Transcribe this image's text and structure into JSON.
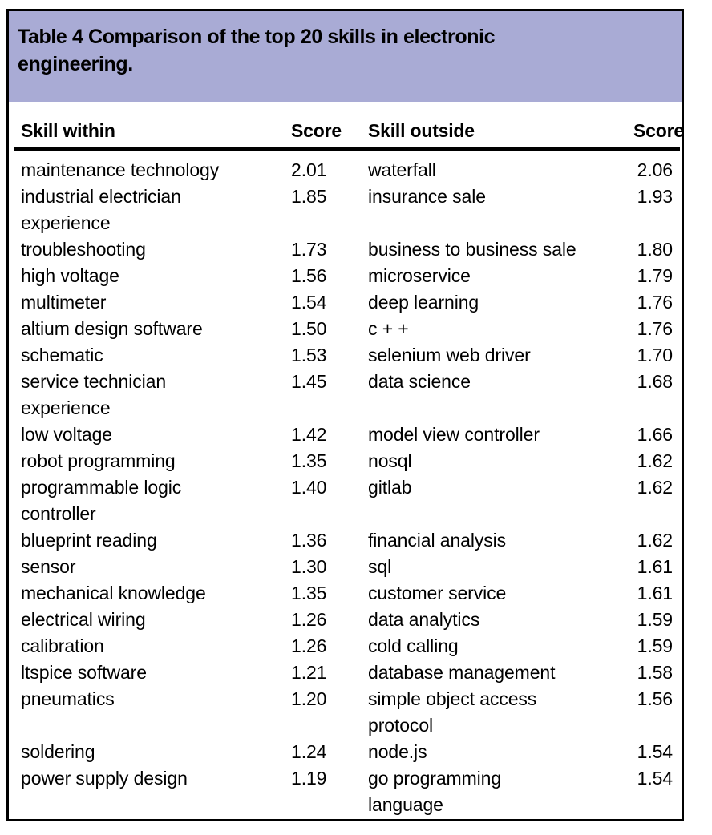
{
  "colors": {
    "caption_bg": "#a9abd5",
    "border": "#000000",
    "text": "#000000"
  },
  "table": {
    "caption": "Table 4 Comparison of the top 20 skills in electronic\nengineering.",
    "columns": {
      "skill_within": "Skill within",
      "score_within": "Score",
      "skill_outside": "Skill outside",
      "score_outside": "Score"
    },
    "rows": [
      {
        "skill_within": "maintenance technology",
        "score_within": "2.01",
        "skill_outside": "waterfall",
        "score_outside": "2.06"
      },
      {
        "skill_within": "industrial electrician\nexperience",
        "score_within": "1.85",
        "skill_outside": "insurance sale",
        "score_outside": "1.93"
      },
      {
        "skill_within": "troubleshooting",
        "score_within": "1.73",
        "skill_outside": "business to business sale",
        "score_outside": "1.80"
      },
      {
        "skill_within": "high voltage",
        "score_within": "1.56",
        "skill_outside": "microservice",
        "score_outside": "1.79"
      },
      {
        "skill_within": "multimeter",
        "score_within": "1.54",
        "skill_outside": "deep learning",
        "score_outside": "1.76"
      },
      {
        "skill_within": "altium design software",
        "score_within": "1.50",
        "skill_outside": "c + +",
        "score_outside": "1.76"
      },
      {
        "skill_within": "schematic",
        "score_within": "1.53",
        "skill_outside": "selenium web driver",
        "score_outside": "1.70"
      },
      {
        "skill_within": "service technician\nexperience",
        "score_within": "1.45",
        "skill_outside": "data science",
        "score_outside": "1.68"
      },
      {
        "skill_within": "low voltage",
        "score_within": "1.42",
        "skill_outside": "model view controller",
        "score_outside": "1.66"
      },
      {
        "skill_within": "robot programming",
        "score_within": "1.35",
        "skill_outside": "nosql",
        "score_outside": "1.62"
      },
      {
        "skill_within": "programmable logic\ncontroller",
        "score_within": "1.40",
        "skill_outside": "gitlab",
        "score_outside": "1.62"
      },
      {
        "skill_within": "blueprint reading",
        "score_within": "1.36",
        "skill_outside": "financial analysis",
        "score_outside": "1.62"
      },
      {
        "skill_within": "sensor",
        "score_within": "1.30",
        "skill_outside": "sql",
        "score_outside": "1.61"
      },
      {
        "skill_within": "mechanical knowledge",
        "score_within": "1.35",
        "skill_outside": "customer service",
        "score_outside": "1.61"
      },
      {
        "skill_within": "electrical wiring",
        "score_within": "1.26",
        "skill_outside": "data analytics",
        "score_outside": "1.59"
      },
      {
        "skill_within": "calibration",
        "score_within": "1.26",
        "skill_outside": "cold calling",
        "score_outside": "1.59"
      },
      {
        "skill_within": "ltspice software",
        "score_within": "1.21",
        "skill_outside": "database management",
        "score_outside": "1.58"
      },
      {
        "skill_within": "pneumatics",
        "score_within": "1.20",
        "skill_outside": "simple object access\nprotocol",
        "score_outside": "1.56"
      },
      {
        "skill_within": "soldering",
        "score_within": "1.24",
        "skill_outside": "node.js",
        "score_outside": "1.54"
      },
      {
        "skill_within": "power supply design",
        "score_within": "1.19",
        "skill_outside": "go programming\nlanguage",
        "score_outside": "1.54"
      }
    ]
  }
}
